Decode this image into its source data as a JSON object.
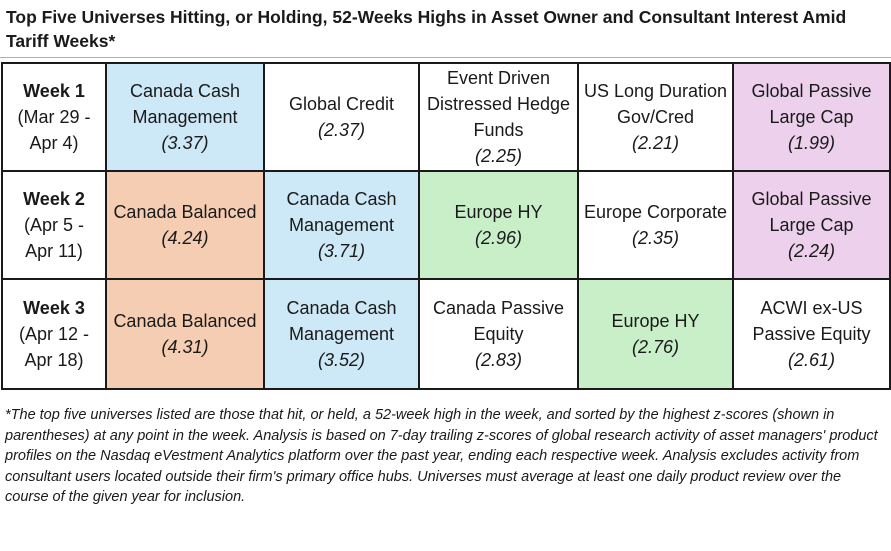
{
  "title": "Top Five Universes Hitting, or Holding, 52-Weeks Highs in Asset Owner and Consultant Interest Amid Tariff Weeks*",
  "colors": {
    "blue": "#cde8f6",
    "purple": "#ecd0ec",
    "orange": "#f5cdb2",
    "green": "#c9efc9"
  },
  "weeks": [
    {
      "label": "Week 1",
      "range_line1": "(Mar 29 -",
      "range_line2": "Apr 4)",
      "cells": [
        {
          "name": "Canada Cash Management",
          "score": "(3.37)",
          "color": "blue"
        },
        {
          "name": "Global Credit",
          "score": "(2.37)",
          "color": "white"
        },
        {
          "name": "Event Driven Distressed Hedge Funds",
          "score": "(2.25)",
          "color": "white"
        },
        {
          "name": "US Long Duration Gov/Cred",
          "score": "(2.21)",
          "color": "white"
        },
        {
          "name": "Global Passive Large Cap",
          "score": "(1.99)",
          "color": "purple"
        }
      ]
    },
    {
      "label": "Week 2",
      "range_line1": "(Apr 5 -",
      "range_line2": "Apr 11)",
      "cells": [
        {
          "name": "Canada Balanced",
          "score": "(4.24)",
          "color": "orange"
        },
        {
          "name": "Canada Cash Management",
          "score": "(3.71)",
          "color": "blue"
        },
        {
          "name": "Europe HY",
          "score": "(2.96)",
          "color": "green"
        },
        {
          "name": "Europe Corporate",
          "score": "(2.35)",
          "color": "white"
        },
        {
          "name": "Global Passive Large Cap",
          "score": "(2.24)",
          "color": "purple"
        }
      ]
    },
    {
      "label": "Week 3",
      "range_line1": "(Apr 12 -",
      "range_line2": "Apr 18)",
      "cells": [
        {
          "name": "Canada Balanced",
          "score": "(4.31)",
          "color": "orange"
        },
        {
          "name": "Canada Cash Management",
          "score": "(3.52)",
          "color": "blue"
        },
        {
          "name": "Canada Passive Equity",
          "score": "(2.83)",
          "color": "white"
        },
        {
          "name": "Europe HY",
          "score": "(2.76)",
          "color": "green"
        },
        {
          "name": "ACWI ex-US Passive Equity",
          "score": "(2.61)",
          "color": "white"
        }
      ]
    }
  ],
  "footnote": "*The top five universes listed are those that hit, or held, a 52-week high in the week, and sorted by the highest z-scores (shown in parentheses) at any point in the week. Analysis is based on 7-day trailing z-scores of global research activity of asset managers' product profiles on the Nasdaq eVestment Analytics platform over the past year, ending each respective week. Analysis excludes activity from consultant users located outside their firm's primary office hubs. Universes must average at least one daily product review over the course of the given year for inclusion."
}
